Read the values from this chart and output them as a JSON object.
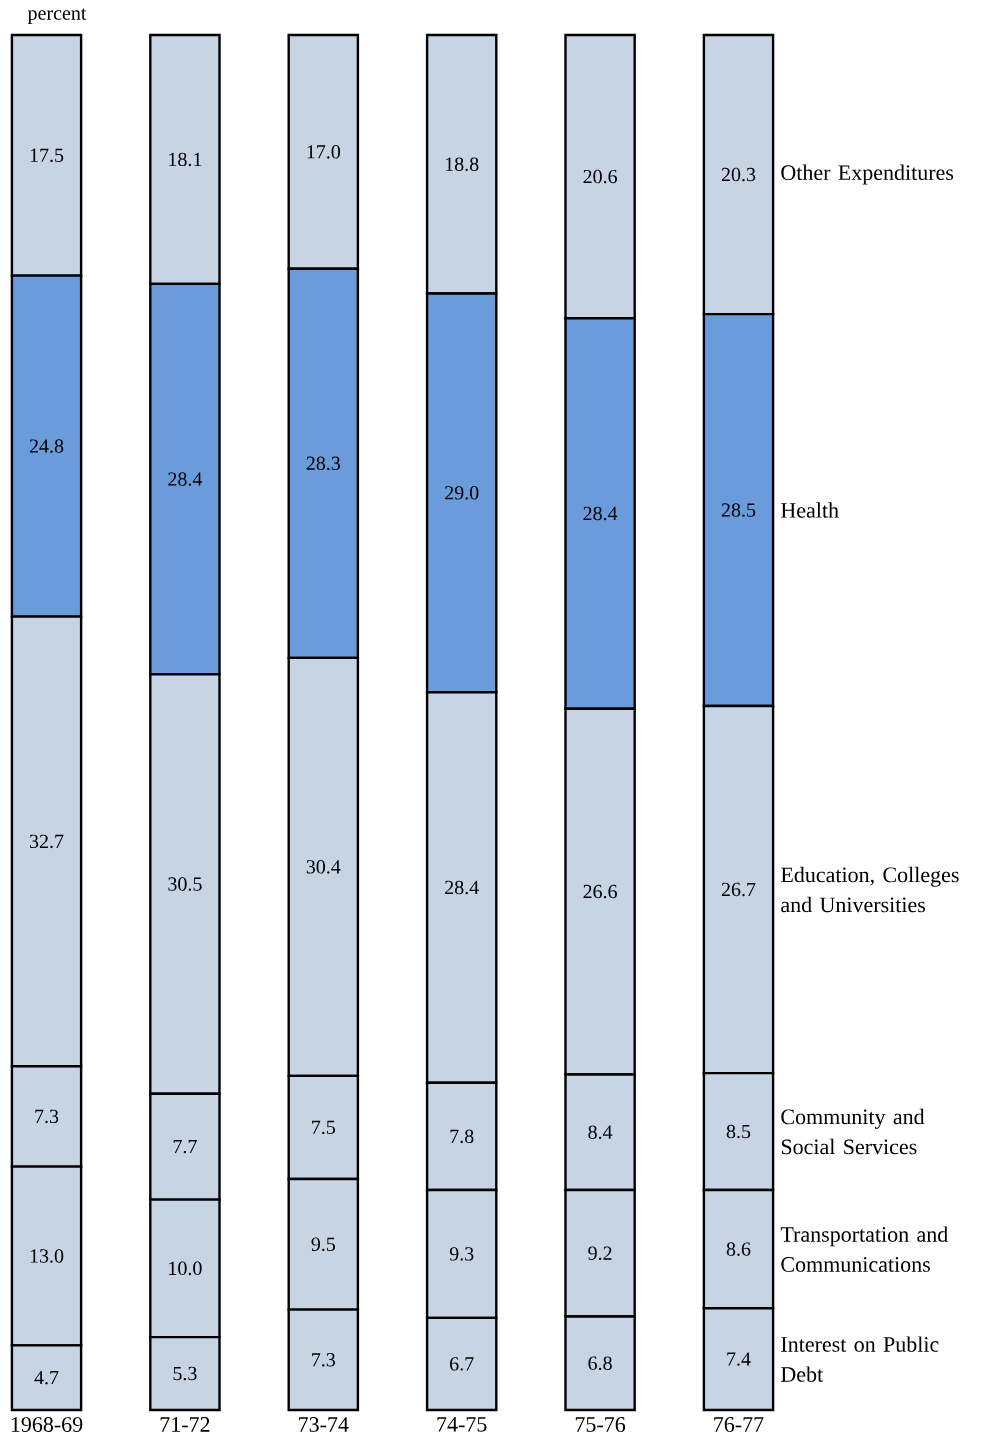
{
  "chart_data": {
    "type": "bar",
    "stacked": true,
    "ylabel": "percent",
    "categories": [
      "1968-69",
      "71-72",
      "73-74",
      "74-75",
      "75-76",
      "76-77"
    ],
    "ylim": [
      0,
      100
    ],
    "series": [
      {
        "name": "Interest on Public Debt",
        "color": "#c6d4e4",
        "values": [
          4.7,
          5.3,
          7.3,
          6.7,
          6.8,
          7.4
        ],
        "value_labels": [
          "4.7",
          "5.3",
          "7.3",
          "6.7",
          "6.8",
          "7.4"
        ]
      },
      {
        "name": "Transportation and Communications",
        "color": "#c6d4e4",
        "values": [
          13.0,
          10.0,
          9.5,
          9.3,
          9.2,
          8.6
        ],
        "value_labels": [
          "13.0",
          "10.0",
          "9.5",
          "9.3",
          "9.2",
          "8.6"
        ]
      },
      {
        "name": "Community and Social Services",
        "color": "#c6d4e4",
        "values": [
          7.3,
          7.7,
          7.5,
          7.8,
          8.4,
          8.5
        ],
        "value_labels": [
          "7.3",
          "7.7",
          "7.5",
          "7.8",
          "8.4",
          "8.5"
        ]
      },
      {
        "name": "Education, Colleges and Universities",
        "color": "#c6d4e4",
        "values": [
          32.7,
          30.5,
          30.4,
          28.4,
          26.6,
          26.7
        ],
        "value_labels": [
          "32.7",
          "30.5",
          "30.4",
          "28.4",
          "26.6",
          "26.7"
        ]
      },
      {
        "name": "Health",
        "color": "#6a9cdc",
        "values": [
          24.8,
          28.4,
          28.3,
          29.0,
          28.4,
          28.5
        ],
        "value_labels": [
          "24.8",
          "28.4",
          "28.3",
          "29.0",
          "28.4",
          "28.5"
        ]
      },
      {
        "name": "Other Expenditures",
        "color": "#c6d4e4",
        "values": [
          17.5,
          18.1,
          17.0,
          18.8,
          20.6,
          20.3
        ],
        "value_labels": [
          "17.5",
          "18.1",
          "17.0",
          "18.8",
          "20.6",
          "20.3"
        ]
      }
    ]
  }
}
